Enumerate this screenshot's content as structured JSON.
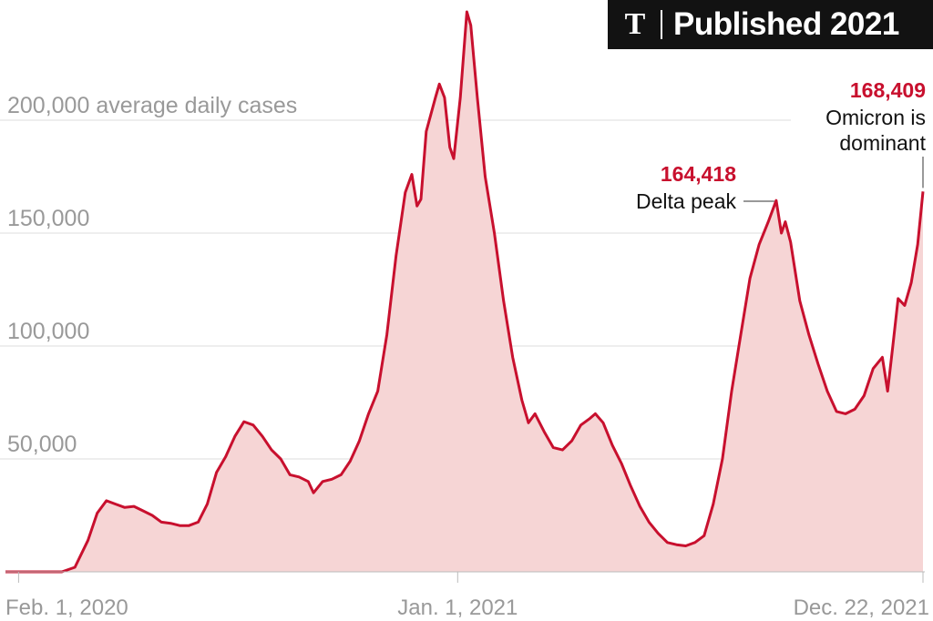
{
  "badge": {
    "logo_text": "T",
    "label": "Published 2021",
    "background": "#121212"
  },
  "chart_data": {
    "type": "area",
    "title": "",
    "xlabel": "",
    "ylabel": "",
    "ylim": [
      0,
      250000
    ],
    "xlim": [
      "2020-01-22",
      "2021-12-22"
    ],
    "y_ticks": [
      {
        "value": 200000,
        "label": "200,000 average daily cases"
      },
      {
        "value": 150000,
        "label": "150,000"
      },
      {
        "value": 100000,
        "label": "100,000"
      },
      {
        "value": 50000,
        "label": "50,000"
      }
    ],
    "x_ticks": [
      {
        "date": "2020-02-01",
        "label": "Feb. 1, 2020"
      },
      {
        "date": "2021-01-01",
        "label": "Jan. 1, 2021"
      },
      {
        "date": "2021-12-22",
        "label": "Dec. 22, 2021"
      }
    ],
    "grid": true,
    "colors": {
      "line": "#c8102e",
      "fill": "#f6d5d5",
      "grid": "#dddddd",
      "axis": "#bbbbbb"
    },
    "series": [
      {
        "points": [
          [
            "2020-01-22",
            0
          ],
          [
            "2020-03-05",
            0
          ],
          [
            "2020-03-15",
            2000
          ],
          [
            "2020-03-25",
            14000
          ],
          [
            "2020-04-01",
            26000
          ],
          [
            "2020-04-08",
            31500
          ],
          [
            "2020-04-15",
            30000
          ],
          [
            "2020-04-22",
            28500
          ],
          [
            "2020-04-29",
            29000
          ],
          [
            "2020-05-06",
            27000
          ],
          [
            "2020-05-13",
            25000
          ],
          [
            "2020-05-20",
            22000
          ],
          [
            "2020-05-27",
            21500
          ],
          [
            "2020-06-03",
            20500
          ],
          [
            "2020-06-10",
            20500
          ],
          [
            "2020-06-17",
            22000
          ],
          [
            "2020-06-24",
            30000
          ],
          [
            "2020-07-01",
            44000
          ],
          [
            "2020-07-08",
            51000
          ],
          [
            "2020-07-15",
            60000
          ],
          [
            "2020-07-22",
            66500
          ],
          [
            "2020-07-29",
            65000
          ],
          [
            "2020-08-05",
            60000
          ],
          [
            "2020-08-12",
            54000
          ],
          [
            "2020-08-19",
            50000
          ],
          [
            "2020-08-26",
            43000
          ],
          [
            "2020-09-02",
            42000
          ],
          [
            "2020-09-09",
            40000
          ],
          [
            "2020-09-13",
            35000
          ],
          [
            "2020-09-20",
            40000
          ],
          [
            "2020-09-27",
            41000
          ],
          [
            "2020-10-04",
            43000
          ],
          [
            "2020-10-11",
            49000
          ],
          [
            "2020-10-18",
            58000
          ],
          [
            "2020-10-25",
            70000
          ],
          [
            "2020-11-01",
            80000
          ],
          [
            "2020-11-08",
            105000
          ],
          [
            "2020-11-15",
            140000
          ],
          [
            "2020-11-22",
            168000
          ],
          [
            "2020-11-27",
            176000
          ],
          [
            "2020-12-01",
            162000
          ],
          [
            "2020-12-04",
            165000
          ],
          [
            "2020-12-08",
            195000
          ],
          [
            "2020-12-15",
            210000
          ],
          [
            "2020-12-18",
            216000
          ],
          [
            "2020-12-22",
            210000
          ],
          [
            "2020-12-26",
            188000
          ],
          [
            "2020-12-29",
            183000
          ],
          [
            "2021-01-03",
            210000
          ],
          [
            "2021-01-08",
            248000
          ],
          [
            "2021-01-11",
            242000
          ],
          [
            "2021-01-16",
            210000
          ],
          [
            "2021-01-22",
            175000
          ],
          [
            "2021-01-29",
            150000
          ],
          [
            "2021-02-05",
            120000
          ],
          [
            "2021-02-12",
            95000
          ],
          [
            "2021-02-19",
            76000
          ],
          [
            "2021-02-24",
            66000
          ],
          [
            "2021-03-01",
            70000
          ],
          [
            "2021-03-08",
            62000
          ],
          [
            "2021-03-15",
            55000
          ],
          [
            "2021-03-22",
            54000
          ],
          [
            "2021-03-29",
            58000
          ],
          [
            "2021-04-05",
            65000
          ],
          [
            "2021-04-12",
            68000
          ],
          [
            "2021-04-16",
            70000
          ],
          [
            "2021-04-22",
            66000
          ],
          [
            "2021-04-29",
            56000
          ],
          [
            "2021-05-06",
            48000
          ],
          [
            "2021-05-13",
            38000
          ],
          [
            "2021-05-20",
            29000
          ],
          [
            "2021-05-27",
            22000
          ],
          [
            "2021-06-03",
            17000
          ],
          [
            "2021-06-10",
            13000
          ],
          [
            "2021-06-17",
            12000
          ],
          [
            "2021-06-24",
            11500
          ],
          [
            "2021-07-01",
            13000
          ],
          [
            "2021-07-08",
            16000
          ],
          [
            "2021-07-15",
            30000
          ],
          [
            "2021-07-22",
            50000
          ],
          [
            "2021-07-29",
            80000
          ],
          [
            "2021-08-05",
            105000
          ],
          [
            "2021-08-12",
            130000
          ],
          [
            "2021-08-19",
            145000
          ],
          [
            "2021-08-26",
            155000
          ],
          [
            "2021-09-01",
            164418
          ],
          [
            "2021-09-05",
            150000
          ],
          [
            "2021-09-08",
            155000
          ],
          [
            "2021-09-12",
            146000
          ],
          [
            "2021-09-19",
            120000
          ],
          [
            "2021-09-26",
            105000
          ],
          [
            "2021-10-03",
            92000
          ],
          [
            "2021-10-10",
            80000
          ],
          [
            "2021-10-17",
            71000
          ],
          [
            "2021-10-24",
            70000
          ],
          [
            "2021-10-31",
            72000
          ],
          [
            "2021-11-07",
            78000
          ],
          [
            "2021-11-14",
            90000
          ],
          [
            "2021-11-21",
            95000
          ],
          [
            "2021-11-25",
            80000
          ],
          [
            "2021-11-29",
            100000
          ],
          [
            "2021-12-03",
            121000
          ],
          [
            "2021-12-08",
            118000
          ],
          [
            "2021-12-13",
            128000
          ],
          [
            "2021-12-18",
            145000
          ],
          [
            "2021-12-22",
            168409
          ]
        ]
      }
    ],
    "annotations": [
      {
        "date": "2021-12-22",
        "value": "168,409",
        "lines": [
          "Omicron is",
          "dominant"
        ]
      },
      {
        "date": "2021-09-01",
        "value": "164,418",
        "lines": [
          "Delta peak"
        ]
      }
    ]
  }
}
